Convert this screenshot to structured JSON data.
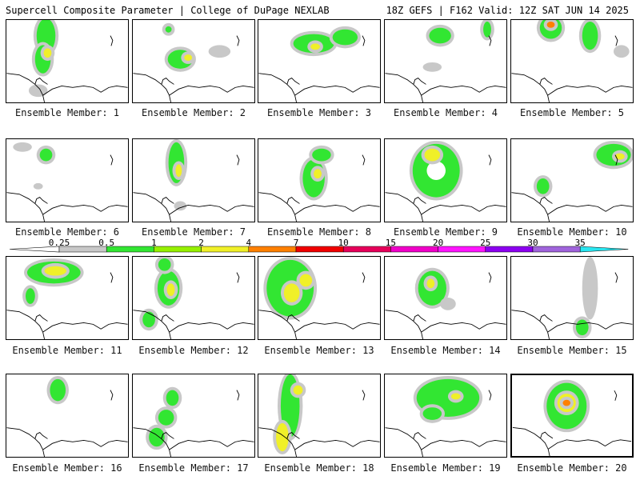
{
  "header": {
    "left": "Supercell Composite Parameter | College of DuPage NEXLAB",
    "right": "18Z GEFS | F162 Valid: 12Z SAT JUN 14 2025"
  },
  "colorbar": {
    "labels": [
      "0.25",
      "0.5",
      "1",
      "2",
      "4",
      "7",
      "10",
      "15",
      "20",
      "25",
      "30",
      "35"
    ],
    "colors": [
      "#c8c8c8",
      "#32e632",
      "#96f000",
      "#f0f028",
      "#ff8000",
      "#f00000",
      "#e6005a",
      "#f000c8",
      "#ff14ff",
      "#8c00f0",
      "#a064dc",
      "#28e6f0"
    ]
  },
  "members": [
    {
      "label": "Ensemble Member: 1"
    },
    {
      "label": "Ensemble Member: 2"
    },
    {
      "label": "Ensemble Member: 3"
    },
    {
      "label": "Ensemble Member: 4"
    },
    {
      "label": "Ensemble Member: 5"
    },
    {
      "label": "Ensemble Member: 6"
    },
    {
      "label": "Ensemble Member: 7"
    },
    {
      "label": "Ensemble Member: 8"
    },
    {
      "label": "Ensemble Member: 9"
    },
    {
      "label": "Ensemble Member: 10"
    },
    {
      "label": "Ensemble Member: 11"
    },
    {
      "label": "Ensemble Member: 12"
    },
    {
      "label": "Ensemble Member: 13"
    },
    {
      "label": "Ensemble Member: 14"
    },
    {
      "label": "Ensemble Member: 15"
    },
    {
      "label": "Ensemble Member: 16"
    },
    {
      "label": "Ensemble Member: 17"
    },
    {
      "label": "Ensemble Member: 18"
    },
    {
      "label": "Ensemble Member: 19"
    },
    {
      "label": "Ensemble Member: 20"
    }
  ]
}
